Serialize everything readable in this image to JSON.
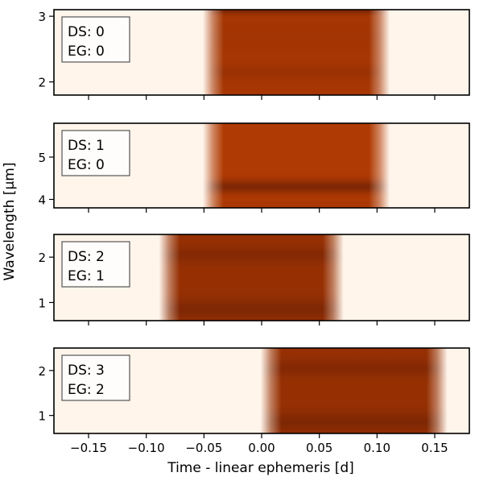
{
  "chart_data": {
    "type": "heatmap",
    "xlabel": "Time - linear ephemeris [d]",
    "ylabel": "Wavelength [μm]",
    "xlim": [
      -0.18,
      0.18
    ],
    "xticks": [
      -0.15,
      -0.1,
      -0.05,
      0.0,
      0.05,
      0.1,
      0.15
    ],
    "xtick_labels": [
      "−0.15",
      "−0.10",
      "−0.05",
      "0.00",
      "0.05",
      "0.10",
      "0.15"
    ],
    "colormap": [
      "#fff5eb",
      "#fdd0a2",
      "#fd8d3c",
      "#e55a0e",
      "#d94801",
      "#a63603",
      "#7f2704"
    ],
    "background_color": "#fff5eb",
    "panels": [
      {
        "label_ds": "DS: 0",
        "label_eg": "EG: 0",
        "ylim": [
          1.8,
          3.1
        ],
        "yticks": [
          2,
          3
        ],
        "transit_start": -0.042,
        "transit_end": 0.102,
        "edge_width": 0.009,
        "base_depth": 0.83,
        "bands": [
          {
            "wavelength": 3.08,
            "depth": 1.0,
            "width": 0.05
          },
          {
            "wavelength": 2.15,
            "depth": 0.88,
            "width": 0.12
          },
          {
            "wavelength": 2.7,
            "depth": 0.85,
            "width": 0.2
          }
        ]
      },
      {
        "label_ds": "DS: 1",
        "label_eg": "EG: 0",
        "ylim": [
          3.8,
          5.8
        ],
        "yticks": [
          4,
          5
        ],
        "transit_start": -0.042,
        "transit_end": 0.102,
        "edge_width": 0.009,
        "base_depth": 0.8,
        "bands": [
          {
            "wavelength": 4.3,
            "depth": 1.0,
            "width": 0.15
          },
          {
            "wavelength": 3.9,
            "depth": 0.82,
            "width": 0.1
          }
        ]
      },
      {
        "label_ds": "DS: 2",
        "label_eg": "EG: 1",
        "ylim": [
          0.6,
          2.5
        ],
        "yticks": [
          1,
          2
        ],
        "transit_start": -0.08,
        "transit_end": 0.062,
        "edge_width": 0.009,
        "base_depth": 0.9,
        "bands": [
          {
            "wavelength": 2.05,
            "depth": 0.98,
            "width": 0.18
          },
          {
            "wavelength": 0.85,
            "depth": 1.0,
            "width": 0.22
          }
        ]
      },
      {
        "label_ds": "DS: 3",
        "label_eg": "EG: 2",
        "ylim": [
          0.6,
          2.5
        ],
        "yticks": [
          1,
          2
        ],
        "transit_start": 0.008,
        "transit_end": 0.152,
        "edge_width": 0.009,
        "base_depth": 0.9,
        "bands": [
          {
            "wavelength": 2.05,
            "depth": 0.98,
            "width": 0.18
          },
          {
            "wavelength": 0.85,
            "depth": 1.0,
            "width": 0.22
          }
        ]
      }
    ]
  }
}
